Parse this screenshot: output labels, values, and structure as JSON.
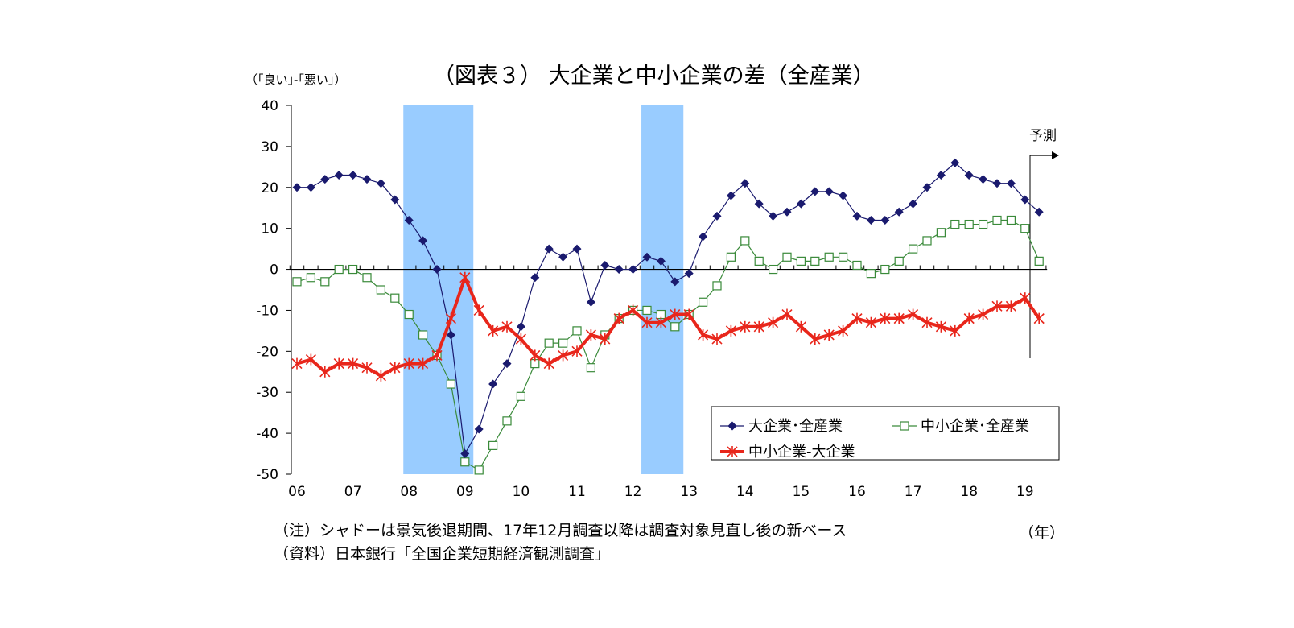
{
  "chart_data": {
    "type": "line",
    "title": "（図表３） 大企業と中小企業の差（全産業）",
    "ylabel": "（｢良い｣-｢悪い｣）",
    "xunit": "（年）",
    "ylim": [
      -50,
      40
    ],
    "yticks": [
      40,
      30,
      20,
      10,
      0,
      -10,
      -20,
      -30,
      -40,
      -50
    ],
    "x_start": "06",
    "x_end": "19",
    "quarters_per_year": 4,
    "year_labels": [
      "06",
      "07",
      "08",
      "09",
      "10",
      "11",
      "12",
      "13",
      "14",
      "15",
      "16",
      "17",
      "18",
      "19"
    ],
    "recession_shading": [
      {
        "from_index": 7.6,
        "to_index": 12.6
      },
      {
        "from_index": 24.6,
        "to_index": 27.6
      }
    ],
    "forecast": {
      "label": "予測",
      "at_index": 52.5
    },
    "legend_position": "bottom-right",
    "series": [
      {
        "name": "大企業･全産業",
        "color": "#1a1a6e",
        "marker": "diamond",
        "values": [
          20,
          20,
          22,
          23,
          23,
          22,
          21,
          17,
          12,
          7,
          0,
          -16,
          -45,
          -39,
          -28,
          -23,
          -14,
          -2,
          5,
          3,
          5,
          -8,
          1,
          0,
          0,
          3,
          2,
          -3,
          -1,
          8,
          13,
          18,
          21,
          16,
          13,
          14,
          16,
          19,
          19,
          18,
          13,
          12,
          12,
          14,
          16,
          20,
          23,
          26,
          23,
          22,
          21,
          21,
          17,
          14
        ]
      },
      {
        "name": "中小企業･全産業",
        "color": "#3a8a3a",
        "marker": "square-open",
        "values": [
          -3,
          -2,
          -3,
          0,
          0,
          -2,
          -5,
          -7,
          -11,
          -16,
          -21,
          -28,
          -47,
          -49,
          -43,
          -37,
          -31,
          -23,
          -18,
          -18,
          -15,
          -24,
          -16,
          -12,
          -10,
          -10,
          -11,
          -14,
          -11,
          -8,
          -4,
          3,
          7,
          2,
          0,
          3,
          2,
          2,
          3,
          3,
          1,
          -1,
          0,
          2,
          5,
          7,
          9,
          11,
          11,
          11,
          12,
          12,
          10,
          2
        ]
      },
      {
        "name": "中小企業-大企業",
        "color": "#e8261b",
        "marker": "star",
        "values": [
          -23,
          -22,
          -25,
          -23,
          -23,
          -24,
          -26,
          -24,
          -23,
          -23,
          -21,
          -12,
          -2,
          -10,
          -15,
          -14,
          -17,
          -21,
          -23,
          -21,
          -20,
          -16,
          -17,
          -12,
          -10,
          -13,
          -13,
          -11,
          -11,
          -16,
          -17,
          -15,
          -14,
          -14,
          -13,
          -11,
          -14,
          -17,
          -16,
          -15,
          -12,
          -13,
          -12,
          -12,
          -11,
          -13,
          -14,
          -15,
          -12,
          -11,
          -9,
          -9,
          -7,
          -12
        ]
      }
    ]
  },
  "notes": [
    "（注）シャドーは景気後退期間、17年12月調査以降は調査対象見直し後の新ベース",
    "（資料）日本銀行「全国企業短期経済観測調査」"
  ]
}
